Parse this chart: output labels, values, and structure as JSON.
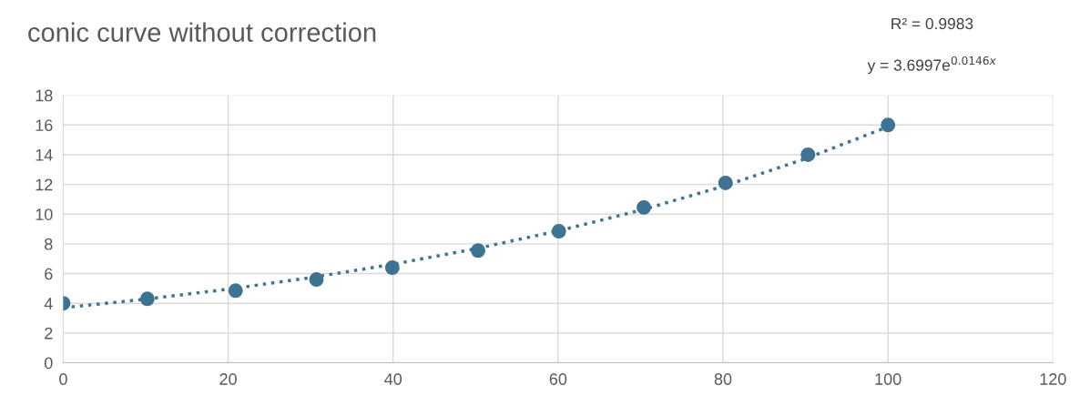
{
  "chart_data": {
    "type": "scatter",
    "title": "conic curve without correction",
    "annotations": [
      "R² = 0.9983",
      "y = 3.6997e$^{0.0146x}$"
    ],
    "series": [
      {
        "color": "#3e7391",
        "marker": "circle",
        "x": [
          0,
          10.2,
          20.9,
          30.7,
          39.9,
          50.3,
          60.1,
          70.4,
          80.3,
          90.3,
          100
        ],
        "values": [
          4.0,
          4.3,
          4.85,
          5.6,
          6.4,
          7.55,
          8.85,
          10.45,
          12.1,
          14.0,
          16.0
        ]
      },
      {
        "type": "line",
        "color": "#3e7391",
        "marker": "none",
        "line_style": "dotted",
        "x": [
          0,
          10,
          20,
          30,
          40,
          50,
          60,
          70,
          80,
          90,
          100
        ],
        "values": [
          3.7,
          4.28,
          4.95,
          5.73,
          6.63,
          7.67,
          8.87,
          10.26,
          11.87,
          13.73,
          15.88
        ]
      }
    ],
    "xlim": [
      0,
      120
    ],
    "xticks": [
      0,
      20,
      40,
      60,
      80,
      100,
      120
    ],
    "ylim": [
      0,
      18
    ],
    "yticks": [
      0,
      2,
      4,
      6,
      8,
      10,
      12,
      14,
      16,
      18
    ],
    "grid": true
  }
}
